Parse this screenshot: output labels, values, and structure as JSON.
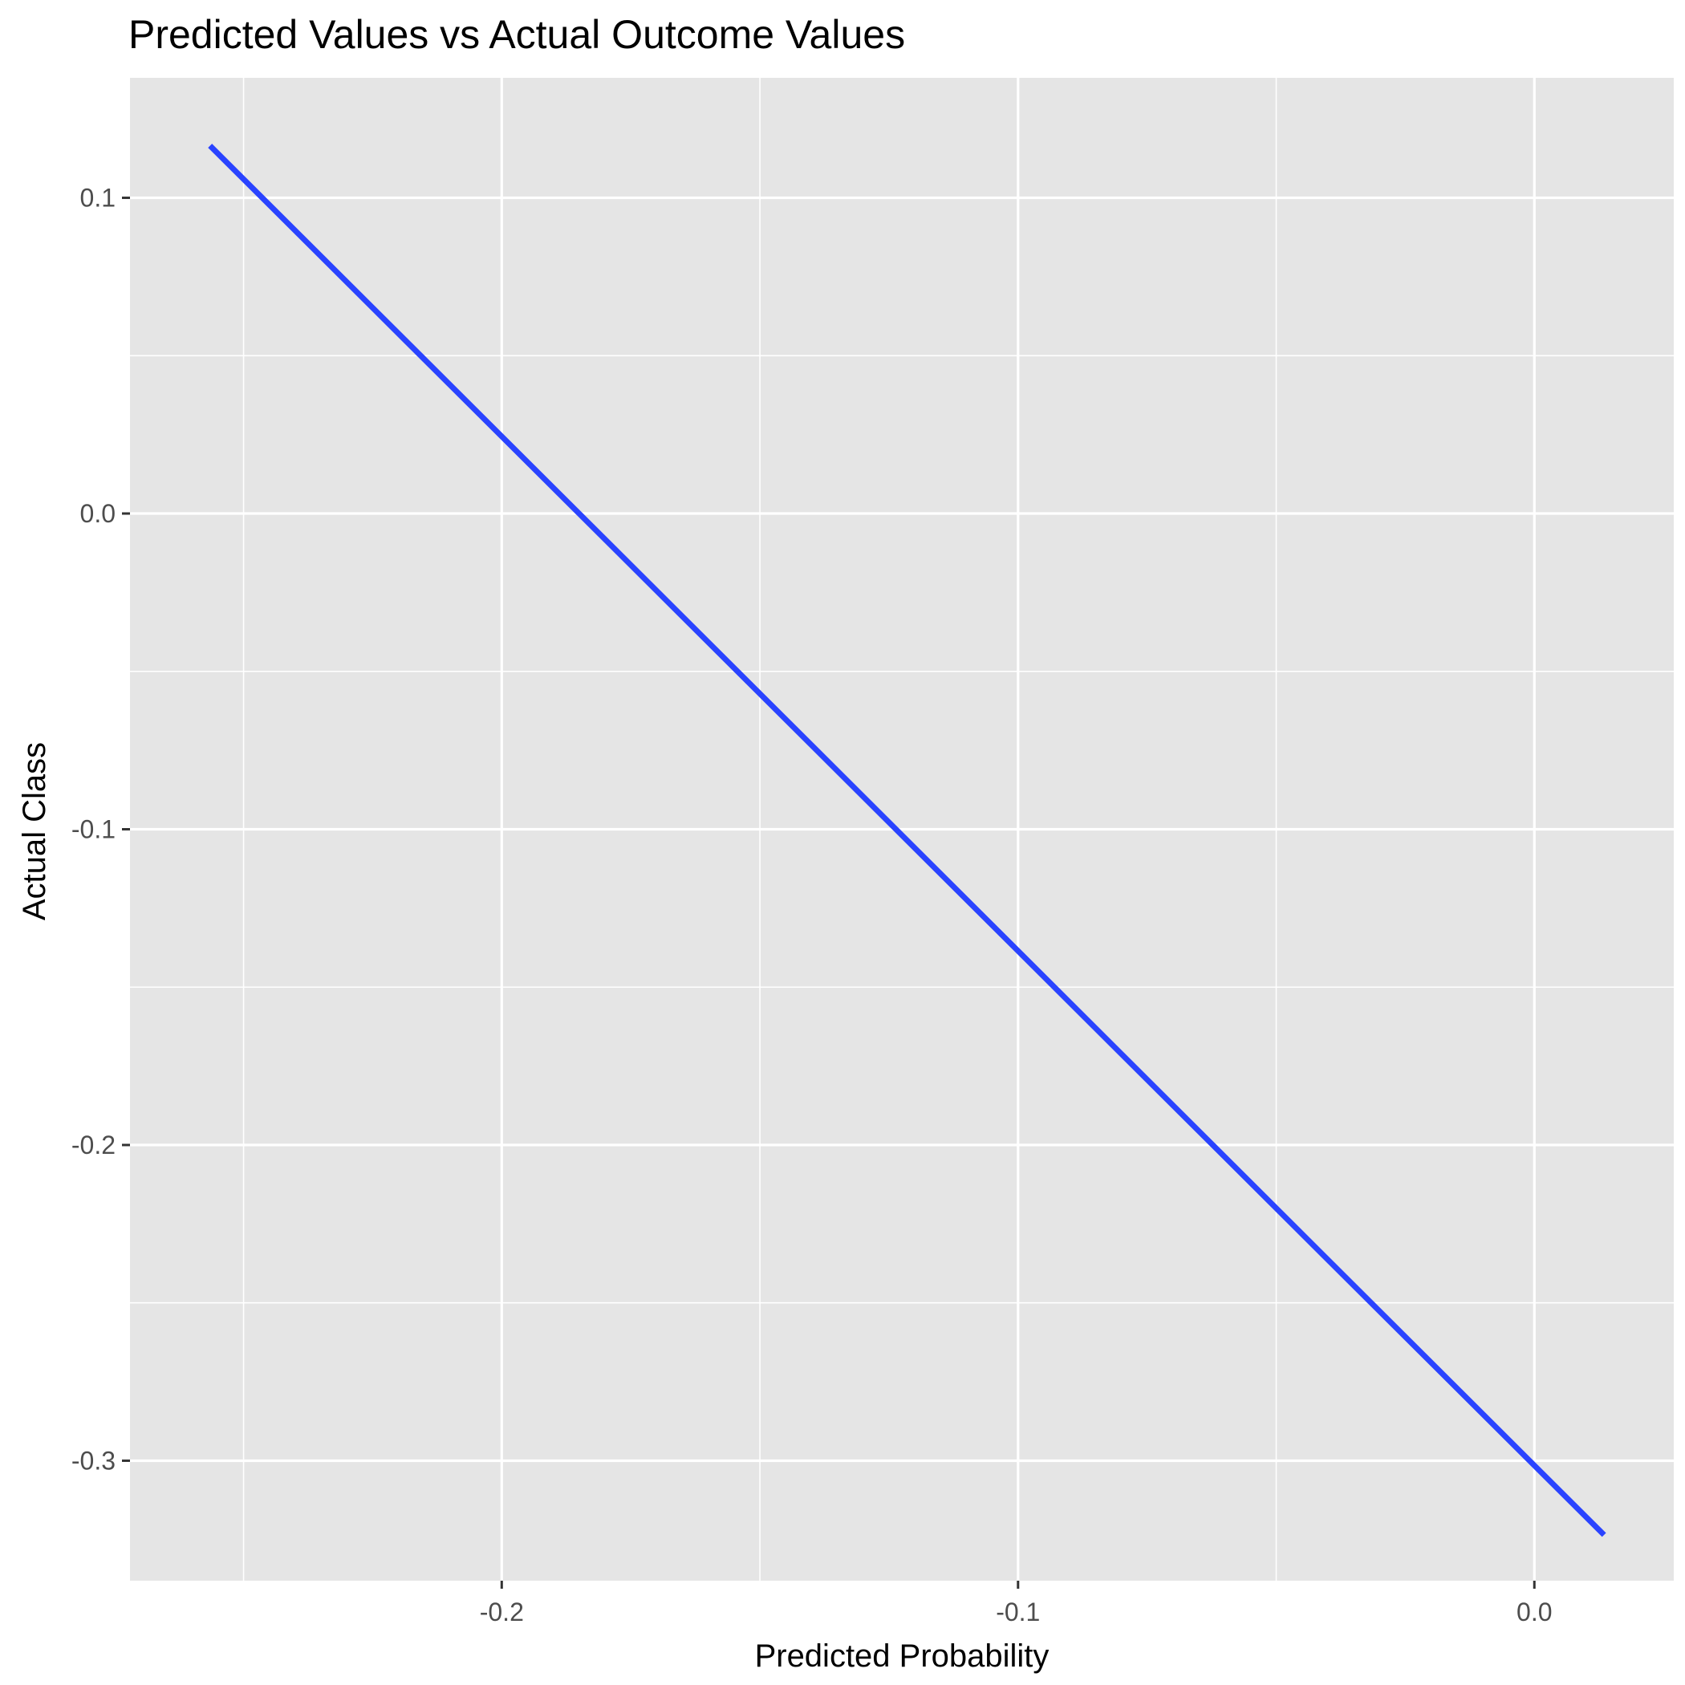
{
  "chart_data": {
    "type": "line",
    "title": "Predicted Values vs Actual Outcome Values",
    "xlabel": "Predicted Probability",
    "ylabel": "Actual Class",
    "x_ticks": [
      -0.2,
      -0.1,
      0.0
    ],
    "x_tick_labels": [
      "-0.2",
      "-0.1",
      "0.0"
    ],
    "y_ticks": [
      0.1,
      0.0,
      -0.1,
      -0.2,
      -0.3
    ],
    "y_tick_labels": [
      "0.1",
      "0.0",
      "-0.1",
      "-0.2",
      "-0.3"
    ],
    "xlim": [
      -0.272,
      0.027
    ],
    "ylim": [
      -0.338,
      0.138
    ],
    "grid": true,
    "colors": {
      "panel_background": "#e5e5e5",
      "grid_line": "#ffffff",
      "line": "#2a43ff",
      "tick_label": "#4d4d4d",
      "tick_mark": "#333333"
    },
    "series": [
      {
        "x": [
          -0.2565,
          0.0135
        ],
        "y": [
          0.1165,
          -0.3235
        ]
      }
    ]
  }
}
